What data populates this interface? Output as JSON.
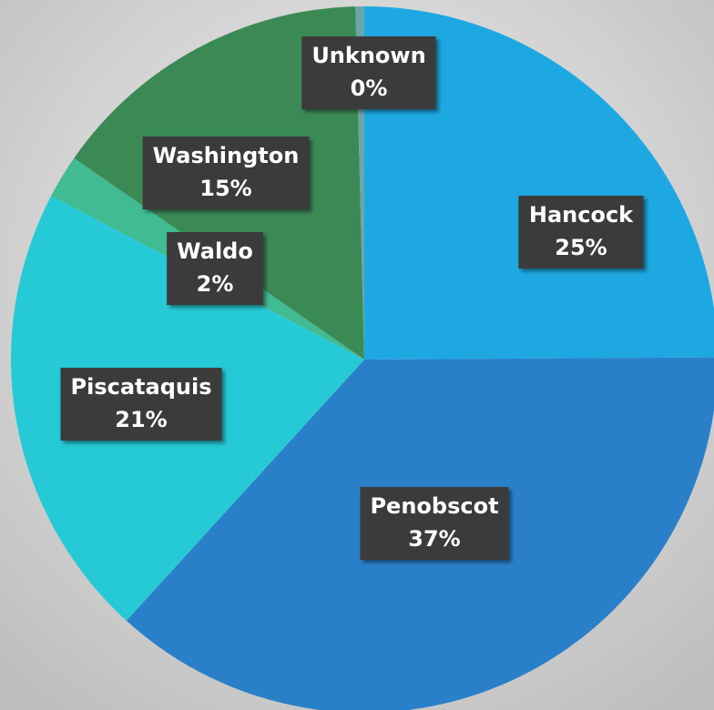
{
  "chart_data": {
    "type": "pie",
    "categories": [
      "Hancock",
      "Penobscot",
      "Piscataquis",
      "Waldo",
      "Washington",
      "Unknown"
    ],
    "values": [
      25,
      37,
      21,
      2,
      15,
      0.4
    ],
    "value_labels": [
      "25%",
      "37%",
      "21%",
      "2%",
      "15%",
      "0%"
    ],
    "colors": [
      "#1ea8e2",
      "#2a80c8",
      "#26cad6",
      "#41bb92",
      "#3b8a56",
      "#6aa6aa"
    ]
  }
}
